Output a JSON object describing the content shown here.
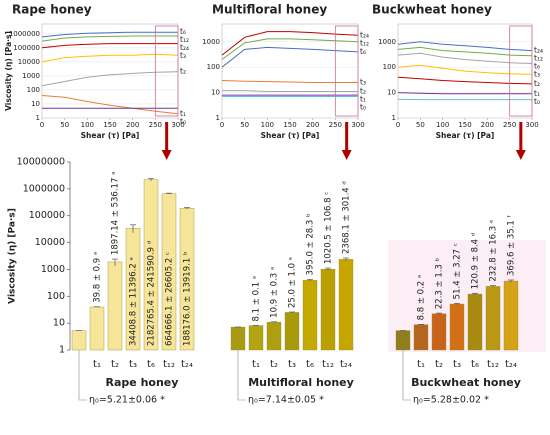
{
  "chart_data": [
    {
      "type": "line",
      "title": "Rape honey",
      "xlabel": "Shear (τ) [Pa]",
      "ylabel": "Viscosity (η) [Pa·s]",
      "log_y": true,
      "x": [
        0,
        50,
        100,
        150,
        200,
        250,
        300
      ],
      "xlim": [
        0,
        300
      ],
      "xticks": [
        0,
        50,
        100,
        150,
        200,
        250,
        300
      ],
      "ylim": [
        1,
        5000000
      ],
      "yticks": [
        1,
        10,
        100,
        1000,
        10000,
        100000,
        1000000
      ],
      "series": [
        {
          "name": "t₆",
          "color": "#4472c4",
          "values": [
            600000,
            900000,
            1100000,
            1200000,
            1300000,
            1300000,
            1300000
          ]
        },
        {
          "name": "t₁₂",
          "color": "#70ad47",
          "values": [
            300000,
            500000,
            600000,
            650000,
            700000,
            700000,
            700000
          ]
        },
        {
          "name": "t₂₄",
          "color": "#c00000",
          "values": [
            100000,
            150000,
            180000,
            200000,
            200000,
            200000,
            200000
          ]
        },
        {
          "name": "t₃",
          "color": "#ffc000",
          "values": [
            10000,
            20000,
            25000,
            30000,
            30000,
            35000,
            30000
          ]
        },
        {
          "name": "t₂",
          "color": "#a5a5a5",
          "values": [
            200,
            400,
            800,
            1200,
            1500,
            1800,
            2000
          ]
        },
        {
          "name": "t₁",
          "color": "#ed7d31",
          "values": [
            40,
            30,
            15,
            8,
            5,
            3,
            2
          ]
        },
        {
          "name": "t₀",
          "color": "#7030a0",
          "values": [
            5,
            5,
            5,
            5,
            5,
            5,
            5
          ]
        }
      ]
    },
    {
      "type": "line",
      "title": "Multifloral honey",
      "xlabel": "Shear (τ) [Pa]",
      "log_y": true,
      "x": [
        0,
        50,
        100,
        150,
        200,
        250,
        300
      ],
      "xlim": [
        0,
        300
      ],
      "xticks": [
        0,
        50,
        100,
        150,
        200,
        250,
        300
      ],
      "ylim": [
        1,
        5000
      ],
      "yticks": [
        1,
        10,
        100,
        1000
      ],
      "series": [
        {
          "name": "t₂₄",
          "color": "#c00000",
          "values": [
            300,
            1500,
            2500,
            2500,
            2300,
            2000,
            1800
          ]
        },
        {
          "name": "t₁₂",
          "color": "#70ad47",
          "values": [
            200,
            900,
            1300,
            1300,
            1200,
            1100,
            1000
          ]
        },
        {
          "name": "t₆",
          "color": "#4472c4",
          "values": [
            100,
            500,
            600,
            550,
            500,
            450,
            400
          ]
        },
        {
          "name": "t₃",
          "color": "#ed7d31",
          "values": [
            30,
            28,
            27,
            26,
            25,
            25,
            25
          ]
        },
        {
          "name": "t₂",
          "color": "#a5a5a5",
          "values": [
            12,
            12,
            11,
            11,
            11,
            11,
            11
          ]
        },
        {
          "name": "t₁",
          "color": "#7030a0",
          "values": [
            8,
            8,
            8,
            8,
            8,
            8,
            8
          ]
        },
        {
          "name": "t₀",
          "color": "#5bc0de",
          "values": [
            7,
            7,
            7,
            7,
            7,
            7,
            7
          ]
        }
      ]
    },
    {
      "type": "line",
      "title": "Buckwheat honey",
      "xlabel": "Shear (τ) [Pa]",
      "log_y": true,
      "x": [
        0,
        50,
        100,
        150,
        200,
        250,
        300
      ],
      "xlim": [
        0,
        300
      ],
      "xticks": [
        0,
        50,
        100,
        150,
        200,
        250,
        300
      ],
      "ylim": [
        1,
        5000
      ],
      "yticks": [
        1,
        10,
        100,
        1000
      ],
      "series": [
        {
          "name": "t₂₄",
          "color": "#4472c4",
          "values": [
            800,
            1000,
            800,
            700,
            600,
            500,
            450
          ]
        },
        {
          "name": "t₁₂",
          "color": "#70ad47",
          "values": [
            500,
            600,
            450,
            400,
            350,
            300,
            280
          ]
        },
        {
          "name": "t₆",
          "color": "#a5a5a5",
          "values": [
            300,
            350,
            250,
            200,
            170,
            150,
            140
          ]
        },
        {
          "name": "t₃",
          "color": "#ffc000",
          "values": [
            100,
            120,
            90,
            70,
            60,
            55,
            52
          ]
        },
        {
          "name": "t₂",
          "color": "#c00000",
          "values": [
            40,
            35,
            30,
            27,
            25,
            23,
            22
          ]
        },
        {
          "name": "t₁",
          "color": "#7030a0",
          "values": [
            10,
            9.5,
            9,
            9,
            9,
            9,
            9
          ]
        },
        {
          "name": "t₀",
          "color": "#5bc0de",
          "values": [
            5.5,
            5.3,
            5.3,
            5.3,
            5.3,
            5.3,
            5.3
          ]
        }
      ]
    },
    {
      "type": "bar",
      "ylabel": "Viscosity (η) [Pa·s]",
      "log_y": true,
      "ylim": [
        1,
        10000000
      ],
      "yticks": [
        1,
        10,
        100,
        1000,
        10000,
        100000,
        1000000,
        10000000
      ],
      "groups": [
        {
          "name": "Rape honey",
          "eta0": 5.21,
          "eta0_error": 0.06,
          "eta0_label": "η₀=5.21±0.06 *",
          "eta0_color": "#f7e59a",
          "categories": [
            "t₁",
            "t₂",
            "t₃",
            "t₆",
            "t₁₂",
            "t₂₄"
          ],
          "values": [
            39.8,
            1897.14,
            34408.8,
            2182765.4,
            664666.1,
            188176.0
          ],
          "errors": [
            0.9,
            536.17,
            11396.2,
            241590.9,
            26605.2,
            13919.1
          ],
          "value_labels": [
            "39.8 ± 0.9 ᵃ",
            "1897.14 ± 536.17 ᵃ",
            "34408.8 ± 11396.2 ᵃ",
            "2182765.4 ± 241590.9 ᵈ",
            "664666.1 ± 26605.2 ᶜ",
            "188176.0 ± 13919.1 ᵇ"
          ],
          "colors": [
            "#f7e59a",
            "#f7e59a",
            "#f7e59a",
            "#f7e59a",
            "#f7e59a",
            "#f7e59a"
          ]
        },
        {
          "name": "Multifloral honey",
          "eta0": 7.14,
          "eta0_error": 0.05,
          "eta0_label": "η₀=7.14±0.05 *",
          "eta0_color": "#a89a12",
          "categories": [
            "t₁",
            "t₂",
            "t₃",
            "t₆",
            "t₁₂",
            "t₂₄"
          ],
          "values": [
            8.1,
            10.9,
            25.0,
            395.0,
            1020.5,
            2368.1
          ],
          "errors": [
            0.1,
            0.3,
            1.0,
            28.3,
            106.8,
            301.4
          ],
          "value_labels": [
            "8.1 ± 0.1 ᵃ",
            "10.9 ± 0.3 ᵃ",
            "25.0 ± 1.0 ᵃ",
            "395.0 ± 28.3 ᵇ",
            "1020.5 ± 106.8 ᶜ",
            "2368.1 ± 301.4 ᵈ"
          ],
          "colors": [
            "#b3a414",
            "#ae9f10",
            "#a89a0c",
            "#c5a800",
            "#b8a000",
            "#c7a500"
          ]
        },
        {
          "name": "Buckwheat honey",
          "eta0": 5.28,
          "eta0_error": 0.02,
          "eta0_label": "η₀=5.28±0.02 *",
          "eta0_color": "#8f7d1e",
          "categories": [
            "t₁",
            "t₂",
            "t₃",
            "t₆",
            "t₁₂",
            "t₂₄"
          ],
          "values": [
            8.8,
            22.3,
            51.4,
            120.9,
            232.8,
            369.6
          ],
          "errors": [
            0.2,
            1.3,
            3.27,
            8.4,
            16.3,
            35.1
          ],
          "value_labels": [
            "8.8 ± 0.2 ᵃ",
            "22.3 ± 1.3 ᵇ",
            "51.4 ± 3.27 ᶜ",
            "120.9 ± 8.4 ᵈ",
            "232.8 ± 16.3 ᵉ",
            "369.6 ± 35.1 ᶠ"
          ],
          "colors": [
            "#b5651d",
            "#c8641a",
            "#d27018",
            "#a88a10",
            "#bb9812",
            "#d4a317"
          ]
        }
      ]
    }
  ]
}
